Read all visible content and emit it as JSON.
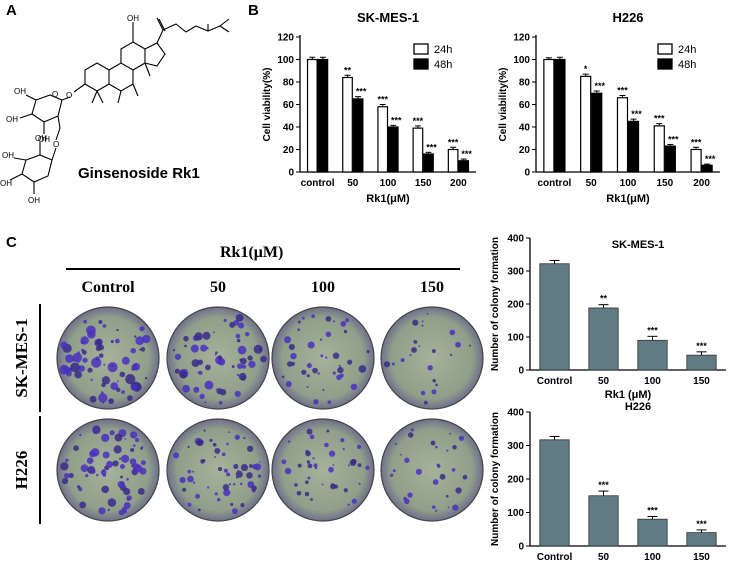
{
  "panels": {
    "a": "A",
    "b": "B",
    "c": "C"
  },
  "molecule": {
    "name": "Ginsenoside Rk1",
    "atoms": {
      "oh_top": "OH",
      "o_ring": "O",
      "oh1": "OH",
      "oh2": "OH",
      "oh3": "OH",
      "oh4": "OH",
      "oh5": "OH",
      "oh6": "OH",
      "oh7": "OH",
      "o_link": "O",
      "o_glyc": "O"
    }
  },
  "colony": {
    "header": "Rk1(μM)",
    "concentrations": [
      "Control",
      "50",
      "100",
      "150"
    ],
    "cell_lines": [
      "SK-MES-1",
      "H226"
    ]
  },
  "chart_data": [
    {
      "type": "bar",
      "title": "SK-MES-1",
      "xlabel": "Rk1(μM)",
      "ylabel": "Cell viability(%)",
      "categories": [
        "control",
        "50",
        "100",
        "150",
        "200"
      ],
      "ylim": [
        0,
        120
      ],
      "yticks": [
        "0",
        "20",
        "40",
        "60",
        "80",
        "100",
        "120"
      ],
      "legend": "top-right",
      "series": [
        {
          "name": "24h",
          "values": [
            100,
            84,
            58,
            39,
            20
          ],
          "errors": [
            2,
            2,
            2,
            2,
            2
          ],
          "color": "#ffffff",
          "sig": [
            "",
            "**",
            "***",
            "***",
            "***"
          ]
        },
        {
          "name": "48h",
          "values": [
            100,
            65,
            40,
            16,
            10
          ],
          "errors": [
            2,
            2,
            1.5,
            1.5,
            1.5
          ],
          "color": "#000000",
          "sig": [
            "",
            "***",
            "***",
            "***",
            "***"
          ]
        }
      ]
    },
    {
      "type": "bar",
      "title": "H226",
      "xlabel": "Rk1(μM)",
      "ylabel": "Cell viability(%)",
      "categories": [
        "control",
        "50",
        "100",
        "150",
        "200"
      ],
      "ylim": [
        0,
        120
      ],
      "yticks": [
        "0",
        "20",
        "40",
        "60",
        "80",
        "100",
        "120"
      ],
      "legend": "top-right",
      "series": [
        {
          "name": "24h",
          "values": [
            100,
            85,
            66,
            41,
            20
          ],
          "errors": [
            1.5,
            2,
            2,
            2,
            2
          ],
          "color": "#ffffff",
          "sig": [
            "",
            "*",
            "***",
            "***",
            "***"
          ]
        },
        {
          "name": "48h",
          "values": [
            100,
            70,
            45,
            23,
            6
          ],
          "errors": [
            2,
            2,
            2,
            1.5,
            1
          ],
          "color": "#000000",
          "sig": [
            "",
            "***",
            "***",
            "***",
            "***"
          ]
        }
      ]
    },
    {
      "type": "bar",
      "title": "SK-MES-1",
      "xlabel": "Rk1 (μM)",
      "ylabel": "Number of colony formation",
      "categories": [
        "Control",
        "50",
        "100",
        "150"
      ],
      "ylim": [
        0,
        400
      ],
      "yticks": [
        "0",
        "100",
        "200",
        "300",
        "400"
      ],
      "values": [
        322,
        188,
        90,
        45
      ],
      "errors": [
        10,
        10,
        12,
        10
      ],
      "color": "#607b83",
      "sig": [
        "",
        "**",
        "***",
        "***"
      ]
    },
    {
      "type": "bar",
      "title": "H226",
      "xlabel": "",
      "ylabel": "Number of colony formation",
      "categories": [
        "Control",
        "50",
        "100",
        "150"
      ],
      "ylim": [
        0,
        400
      ],
      "yticks": [
        "0",
        "100",
        "200",
        "300",
        "400"
      ],
      "values": [
        317,
        150,
        80,
        40
      ],
      "errors": [
        10,
        14,
        8,
        8
      ],
      "color": "#607b83",
      "sig": [
        "",
        "***",
        "***",
        "***"
      ]
    }
  ]
}
